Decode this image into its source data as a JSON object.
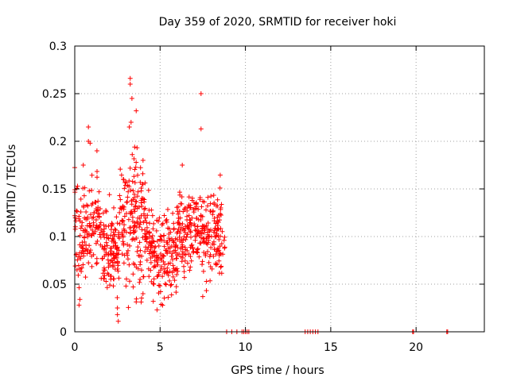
{
  "chart_data": {
    "type": "scatter",
    "title": "Day 359 of 2020, SRMTID for receiver hoki",
    "xlabel": "GPS time / hours",
    "ylabel": "SRMTID / TECUs",
    "xlim": [
      0,
      24
    ],
    "ylim": [
      0,
      0.3
    ],
    "xticks": [
      0,
      5,
      10,
      15,
      20
    ],
    "yticks": [
      0,
      0.05,
      0.1,
      0.15,
      0.2,
      0.25,
      0.3
    ],
    "xtick_labels": [
      "0",
      "5",
      "10",
      "15",
      "20"
    ],
    "ytick_labels": [
      "0",
      "0.05",
      "0.1",
      "0.15",
      "0.2",
      "0.25",
      "0.3"
    ],
    "grid": true,
    "marker": "+",
    "series_color": "#ff0000",
    "notable_points": [
      {
        "x": 3.25,
        "y": 0.266
      },
      {
        "x": 3.25,
        "y": 0.26
      },
      {
        "x": 7.4,
        "y": 0.25
      },
      {
        "x": 3.35,
        "y": 0.245
      },
      {
        "x": 3.6,
        "y": 0.232
      },
      {
        "x": 7.4,
        "y": 0.213
      },
      {
        "x": 0.8,
        "y": 0.215
      },
      {
        "x": 3.2,
        "y": 0.215
      },
      {
        "x": 3.3,
        "y": 0.22
      },
      {
        "x": 0.8,
        "y": 0.2
      },
      {
        "x": 0.9,
        "y": 0.198
      },
      {
        "x": 1.3,
        "y": 0.19
      },
      {
        "x": 0.5,
        "y": 0.175
      },
      {
        "x": 4.0,
        "y": 0.18
      },
      {
        "x": 6.3,
        "y": 0.175
      },
      {
        "x": 2.5,
        "y": 0.025
      },
      {
        "x": 2.5,
        "y": 0.018
      },
      {
        "x": 2.55,
        "y": 0.011
      },
      {
        "x": 0.25,
        "y": 0.028
      },
      {
        "x": 0.3,
        "y": 0.034
      },
      {
        "x": 4.6,
        "y": 0.032
      },
      {
        "x": 7.5,
        "y": 0.037
      },
      {
        "x": 3.0,
        "y": 0.048
      }
    ],
    "zero_points": [
      8.9,
      9.2,
      9.5,
      9.8,
      9.9,
      10.0,
      10.1,
      10.2,
      13.5,
      13.65,
      13.8,
      13.95,
      14.1,
      14.25,
      19.8,
      19.85,
      21.8,
      21.85
    ]
  }
}
